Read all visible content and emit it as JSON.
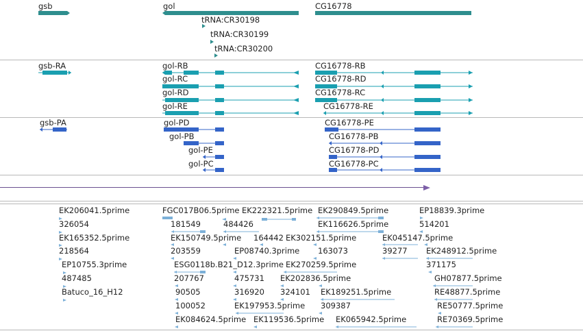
{
  "colors": {
    "gene": "#2e8e8e",
    "flybase_transcript": "#1a9fb0",
    "pa_transcript": "#3464c8",
    "est": "#7cb0d8",
    "axis": "#7d5fa8",
    "separator": "#b8b8b8"
  },
  "tracks": {
    "genes": {
      "items": [
        {
          "label": "gsb"
        },
        {
          "label": "gol"
        },
        {
          "label": "CG16778"
        },
        {
          "label": "tRNA:CR30198"
        },
        {
          "label": "tRNA:CR30199"
        },
        {
          "label": "tRNA:CR30200"
        }
      ]
    },
    "transcripts_r": {
      "items": [
        {
          "label": "gsb-RA"
        },
        {
          "label": "gol-RB"
        },
        {
          "label": "gol-RC"
        },
        {
          "label": "gol-RD"
        },
        {
          "label": "gol-RE"
        },
        {
          "label": "CG16778-RB"
        },
        {
          "label": "CG16778-RD"
        },
        {
          "label": "CG16778-RC"
        },
        {
          "label": "CG16778-RE"
        }
      ]
    },
    "transcripts_p": {
      "items": [
        {
          "label": "gsb-PA"
        },
        {
          "label": "gol-PD"
        },
        {
          "label": "gol-PB"
        },
        {
          "label": "gol-PE"
        },
        {
          "label": "gol-PC"
        },
        {
          "label": "CG16778-PE"
        },
        {
          "label": "CG16778-PB"
        },
        {
          "label": "CG16778-PD"
        },
        {
          "label": "CG16778-PC"
        }
      ]
    },
    "ests": {
      "items": [
        {
          "label": "EK206041.5prime"
        },
        {
          "label": "326054"
        },
        {
          "label": "EK165352.5prime"
        },
        {
          "label": "218564"
        },
        {
          "label": "EP10755.3prime"
        },
        {
          "label": "487485"
        },
        {
          "label": "Batuco_16_H12"
        },
        {
          "label": "FGC017B06.5prime"
        },
        {
          "label": "EK222321.5prime"
        },
        {
          "label": "EK290849.5prime"
        },
        {
          "label": "EP18839.3prime"
        },
        {
          "label": "181549"
        },
        {
          "label": "484426"
        },
        {
          "label": "EK116626.5prime"
        },
        {
          "label": "514201"
        },
        {
          "label": "EK150749.5prime"
        },
        {
          "label": "164442"
        },
        {
          "label": "EK302151.5prime"
        },
        {
          "label": "EK045147.5prime"
        },
        {
          "label": "203559"
        },
        {
          "label": "EP08740.3prime"
        },
        {
          "label": "163073"
        },
        {
          "label": "39277"
        },
        {
          "label": "EK248912.5prime"
        },
        {
          "label": "ESG0118b.B21_D12.3prime"
        },
        {
          "label": "EK270259.5prime"
        },
        {
          "label": "371175"
        },
        {
          "label": "207767"
        },
        {
          "label": "475731"
        },
        {
          "label": "EK202836.5prime"
        },
        {
          "label": "GH07877.5prime"
        },
        {
          "label": "90505"
        },
        {
          "label": "316920"
        },
        {
          "label": "324101"
        },
        {
          "label": "EK189251.5prime"
        },
        {
          "label": "RE48877.5prime"
        },
        {
          "label": "100052"
        },
        {
          "label": "EK197953.5prime"
        },
        {
          "label": "309387"
        },
        {
          "label": "RE50777.5prime"
        },
        {
          "label": "EK084624.5prime"
        },
        {
          "label": "EK119536.5prime"
        },
        {
          "label": "EK065942.5prime"
        },
        {
          "label": "RE70369.5prime"
        }
      ]
    }
  }
}
